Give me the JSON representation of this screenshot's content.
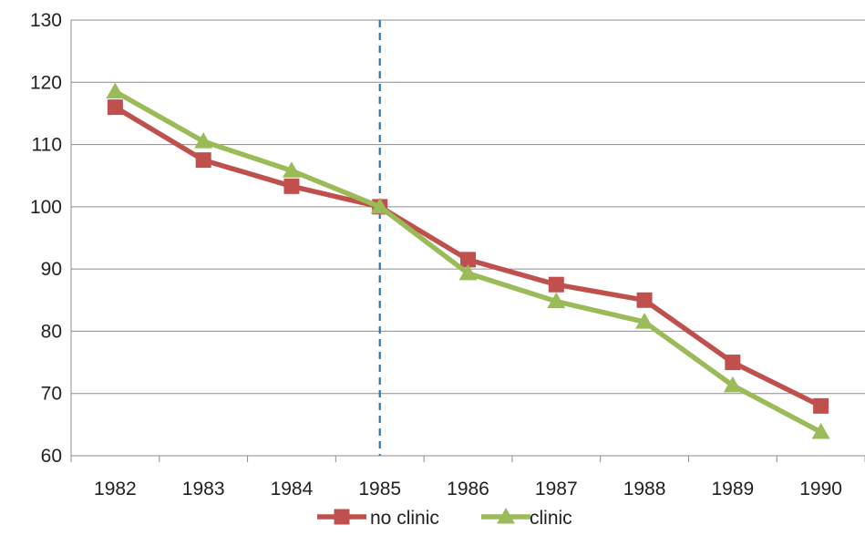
{
  "chart_data": {
    "type": "line",
    "categories": [
      "1982",
      "1983",
      "1984",
      "1985",
      "1986",
      "1987",
      "1988",
      "1989",
      "1990"
    ],
    "ylim": [
      60,
      130
    ],
    "yticks": [
      60,
      70,
      80,
      90,
      100,
      110,
      120,
      130
    ],
    "grid": "horizontal",
    "legend_position": "bottom",
    "reference_line": {
      "x": "1985",
      "style": "dashed",
      "color": "#2E75B6"
    },
    "series": [
      {
        "name": "no clinic",
        "color": "#C0504D",
        "marker": "square",
        "values": [
          116,
          107.5,
          103.3,
          100,
          91.5,
          87.5,
          85,
          75,
          68
        ]
      },
      {
        "name": "clinic",
        "color": "#9BBB59",
        "marker": "triangle",
        "values": [
          118.5,
          110.5,
          105.8,
          100,
          89.3,
          84.8,
          81.5,
          71.3,
          63.8
        ]
      }
    ]
  }
}
